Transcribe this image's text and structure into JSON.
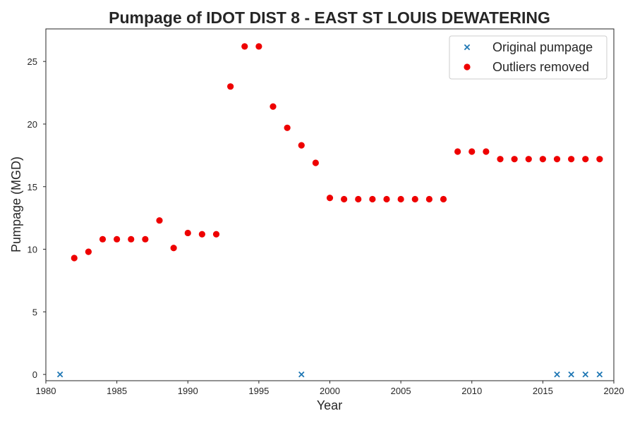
{
  "chart_data": {
    "type": "scatter",
    "title": "Pumpage of IDOT DIST 8 - EAST ST LOUIS DEWATERING",
    "xlabel": "Year",
    "ylabel": "Pumpage (MGD)",
    "xlim": [
      1980,
      2020
    ],
    "ylim": [
      -0.5,
      27.6
    ],
    "xticks": [
      1980,
      1985,
      1990,
      1995,
      2000,
      2005,
      2010,
      2015,
      2020
    ],
    "yticks": [
      0,
      5,
      10,
      15,
      20,
      25
    ],
    "grid": false,
    "legend_position": "top-right",
    "series": [
      {
        "name": "Original pumpage",
        "marker": "x",
        "color": "#1f77b4",
        "x": [
          1981,
          1998,
          2016,
          2017,
          2018,
          2019
        ],
        "y": [
          0,
          0,
          0,
          0,
          0,
          0
        ]
      },
      {
        "name": "Outliers removed",
        "marker": "circle",
        "color": "#ee0000",
        "x": [
          1982,
          1983,
          1984,
          1985,
          1986,
          1987,
          1988,
          1989,
          1990,
          1991,
          1992,
          1993,
          1994,
          1995,
          1996,
          1997,
          1998,
          1999,
          2000,
          2001,
          2002,
          2003,
          2004,
          2005,
          2006,
          2007,
          2008,
          2009,
          2010,
          2011,
          2012,
          2013,
          2014,
          2015,
          2016,
          2017,
          2018,
          2019
        ],
        "y": [
          9.3,
          9.8,
          10.8,
          10.8,
          10.8,
          10.8,
          12.3,
          10.1,
          11.3,
          11.2,
          11.2,
          23.0,
          26.2,
          26.2,
          21.4,
          19.7,
          18.3,
          16.9,
          14.1,
          14.0,
          14.0,
          14.0,
          14.0,
          14.0,
          14.0,
          14.0,
          14.0,
          17.8,
          17.8,
          17.8,
          17.2,
          17.2,
          17.2,
          17.2,
          17.2,
          17.2,
          17.2,
          17.2
        ]
      }
    ]
  }
}
